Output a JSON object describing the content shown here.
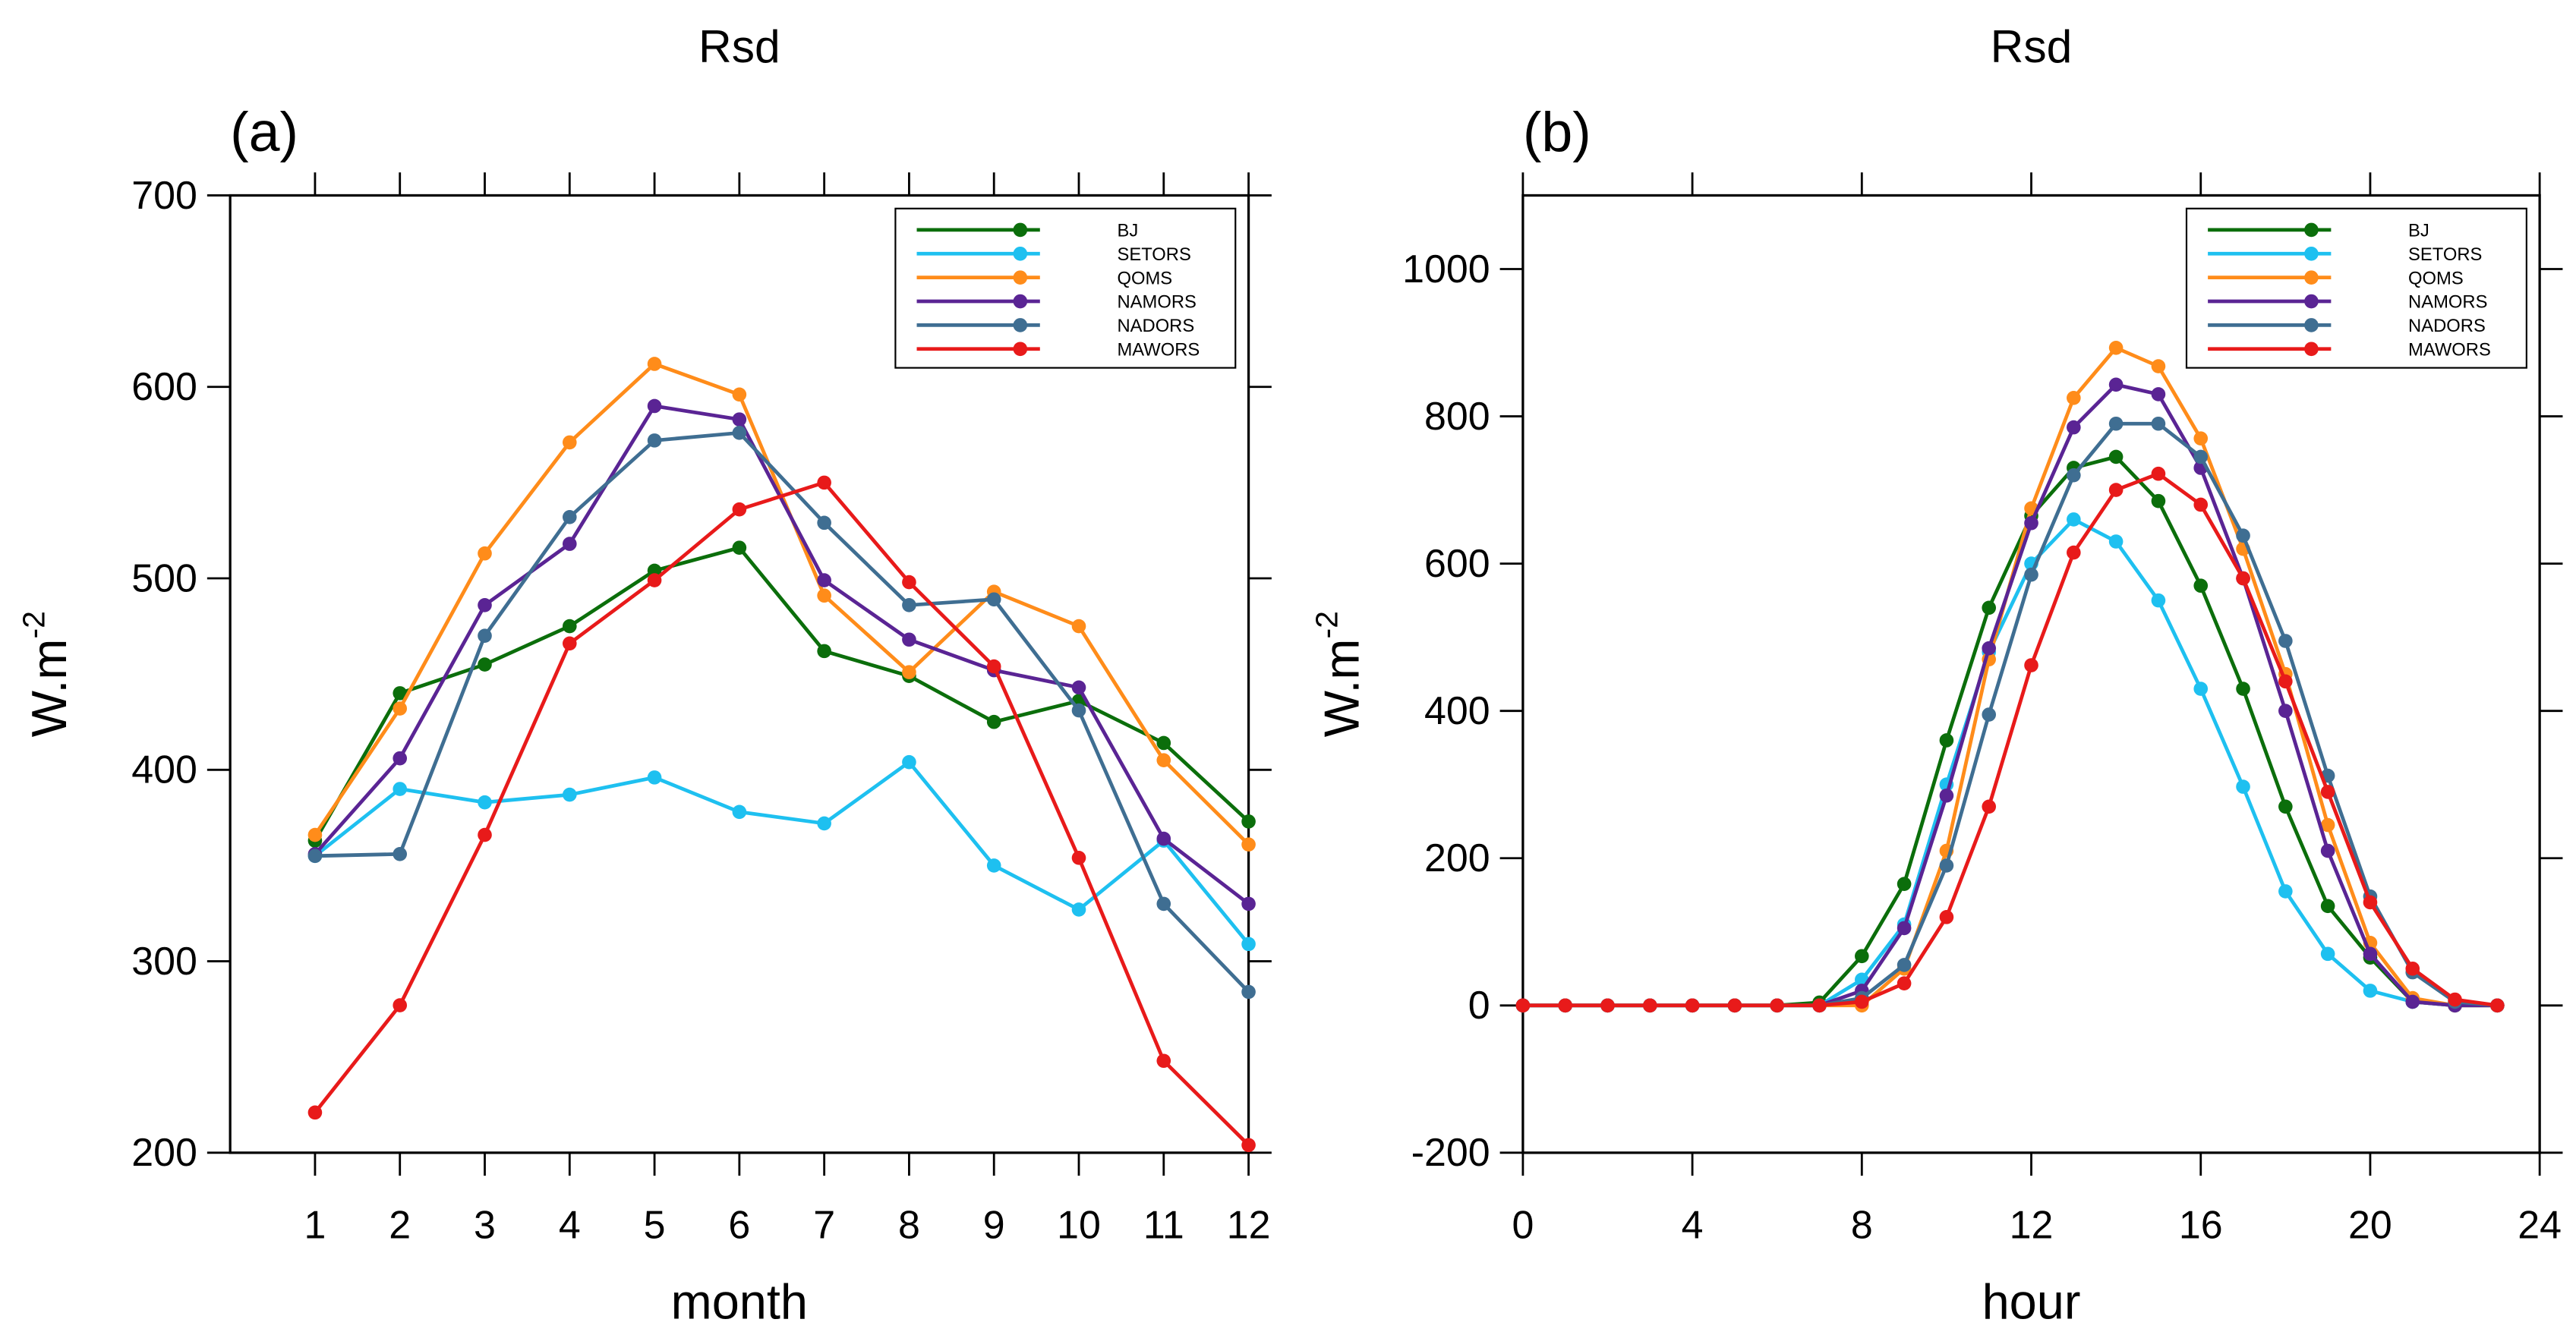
{
  "chart_data": [
    {
      "type": "line",
      "title": "Rsd",
      "panel_label": "(a)",
      "xlabel": "month",
      "ylabel": "W.m",
      "ylabel_superscript": "-2",
      "x": [
        1,
        2,
        3,
        4,
        5,
        6,
        7,
        8,
        9,
        10,
        11,
        12
      ],
      "xlim": [
        0,
        12
      ],
      "xticks": [
        1,
        2,
        3,
        4,
        5,
        6,
        7,
        8,
        9,
        10,
        11,
        12
      ],
      "ylim": [
        200,
        700
      ],
      "yticks": [
        200,
        300,
        400,
        500,
        600,
        700
      ],
      "legend": "upper right",
      "series": [
        {
          "name": "BJ",
          "color": "#0b6e0b",
          "values": [
            363,
            440,
            455,
            475,
            504,
            516,
            462,
            449,
            425,
            436,
            414,
            373
          ]
        },
        {
          "name": "SETORS",
          "color": "#1ec0f0",
          "values": [
            355,
            390,
            383,
            387,
            396,
            378,
            372,
            404,
            350,
            327,
            363,
            309
          ]
        },
        {
          "name": "QOMS",
          "color": "#ff8c1a",
          "values": [
            366,
            432,
            513,
            571,
            612,
            596,
            491,
            451,
            493,
            475,
            405,
            361
          ]
        },
        {
          "name": "NAMORS",
          "color": "#5a2494",
          "values": [
            356,
            406,
            486,
            518,
            590,
            583,
            499,
            468,
            452,
            443,
            364,
            330
          ]
        },
        {
          "name": "NADORS",
          "color": "#3f6e92",
          "values": [
            355,
            356,
            470,
            532,
            572,
            576,
            529,
            486,
            489,
            431,
            330,
            284
          ]
        },
        {
          "name": "MAWORS",
          "color": "#e81a1a",
          "values": [
            221,
            277,
            366,
            466,
            499,
            536,
            550,
            498,
            454,
            354,
            248,
            204
          ]
        }
      ]
    },
    {
      "type": "line",
      "title": "Rsd",
      "panel_label": "(b)",
      "xlabel": "hour",
      "ylabel": "W.m",
      "ylabel_superscript": "-2",
      "x": [
        0,
        1,
        2,
        3,
        4,
        5,
        6,
        7,
        8,
        9,
        10,
        11,
        12,
        13,
        14,
        15,
        16,
        17,
        18,
        19,
        20,
        21,
        22,
        23
      ],
      "xlim": [
        0,
        24
      ],
      "xticks": [
        0,
        4,
        8,
        12,
        16,
        20,
        24
      ],
      "ylim": [
        -200,
        1100
      ],
      "yticks": [
        -200,
        0,
        200,
        400,
        600,
        800,
        1000
      ],
      "legend": "upper right",
      "series": [
        {
          "name": "BJ",
          "color": "#0b6e0b",
          "values": [
            0,
            0,
            0,
            0,
            0,
            0,
            0,
            4,
            67,
            165,
            360,
            540,
            665,
            730,
            745,
            685,
            570,
            430,
            270,
            135,
            65,
            5,
            0,
            0
          ]
        },
        {
          "name": "SETORS",
          "color": "#1ec0f0",
          "values": [
            0,
            0,
            0,
            0,
            0,
            0,
            0,
            0,
            35,
            110,
            300,
            480,
            600,
            660,
            630,
            550,
            430,
            297,
            155,
            70,
            20,
            5,
            0,
            0
          ]
        },
        {
          "name": "QOMS",
          "color": "#ff8c1a",
          "values": [
            0,
            0,
            0,
            0,
            0,
            0,
            0,
            0,
            0,
            50,
            210,
            470,
            675,
            825,
            893,
            868,
            770,
            620,
            450,
            245,
            85,
            10,
            0,
            0
          ]
        },
        {
          "name": "NAMORS",
          "color": "#5a2494",
          "values": [
            0,
            0,
            0,
            0,
            0,
            0,
            0,
            0,
            20,
            105,
            285,
            485,
            655,
            785,
            843,
            830,
            730,
            580,
            400,
            210,
            70,
            5,
            0,
            0
          ]
        },
        {
          "name": "NADORS",
          "color": "#3f6e92",
          "values": [
            0,
            0,
            0,
            0,
            0,
            0,
            0,
            0,
            10,
            55,
            190,
            395,
            585,
            720,
            790,
            790,
            745,
            638,
            495,
            312,
            148,
            45,
            5,
            0
          ]
        },
        {
          "name": "MAWORS",
          "color": "#e81a1a",
          "values": [
            0,
            0,
            0,
            0,
            0,
            0,
            0,
            0,
            5,
            30,
            120,
            270,
            462,
            615,
            700,
            722,
            680,
            580,
            440,
            290,
            140,
            50,
            8,
            0
          ]
        }
      ]
    }
  ]
}
